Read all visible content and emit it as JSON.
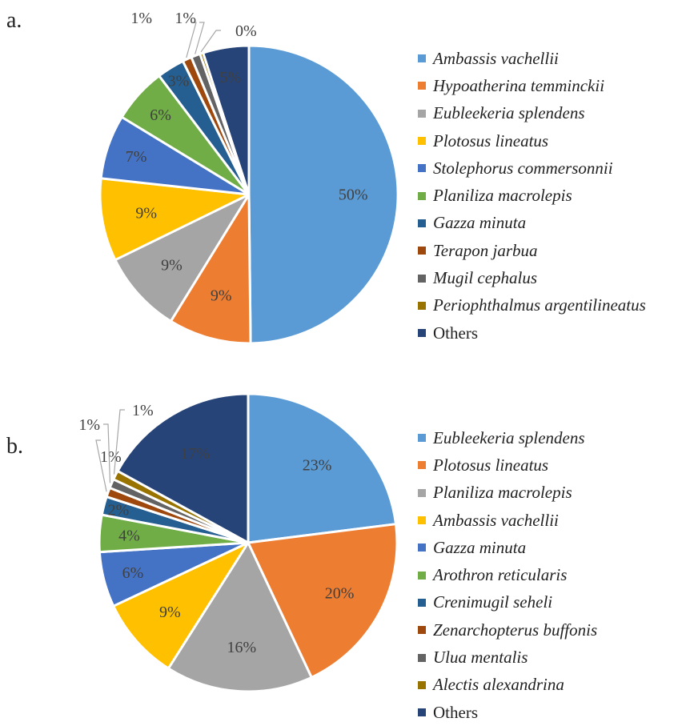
{
  "chart_data": [
    {
      "type": "pie",
      "panel_label": "a.",
      "categories": [
        "Ambassis vachellii",
        "Hypoatherina temminckii",
        "Eubleekeria splendens",
        "Plotosus lineatus",
        "Stolephorus commersonnii",
        "Planiliza macrolepis",
        "Gazza minuta",
        "Terapon jarbua",
        "Mugil cephalus",
        "Periophthalmus argentilineatus",
        "Others"
      ],
      "values": [
        50,
        9,
        9,
        9,
        7,
        6,
        3,
        1,
        1,
        0,
        5
      ],
      "data_labels": [
        "50%",
        "9%",
        "9%",
        "9%",
        "7%",
        "6%",
        "3%",
        "1%",
        "1%",
        "0%",
        "5%"
      ],
      "colors": [
        "#5B9BD5",
        "#ED7D31",
        "#A5A5A5",
        "#FFC000",
        "#4472C4",
        "#70AD47",
        "#255E91",
        "#9E480E",
        "#636363",
        "#997300",
        "#264478"
      ],
      "legend_position": "right"
    },
    {
      "type": "pie",
      "panel_label": "b.",
      "categories": [
        "Eubleekeria splendens",
        "Plotosus lineatus",
        "Planiliza macrolepis",
        "Ambassis vachellii",
        "Gazza minuta",
        "Arothron reticularis",
        "Crenimugil seheli",
        "Zenarchopterus buffonis",
        "Ulua mentalis",
        "Alectis alexandrina",
        "Others"
      ],
      "values": [
        23,
        20,
        16,
        9,
        6,
        4,
        2,
        1,
        1,
        1,
        17
      ],
      "data_labels": [
        "23%",
        "20%",
        "16%",
        "9%",
        "6%",
        "4%",
        "2%",
        "1%",
        "1%",
        "1%",
        "17%"
      ],
      "colors": [
        "#5B9BD5",
        "#ED7D31",
        "#A5A5A5",
        "#FFC000",
        "#4472C4",
        "#70AD47",
        "#255E91",
        "#9E480E",
        "#636363",
        "#997300",
        "#264478"
      ],
      "legend_position": "right"
    }
  ]
}
